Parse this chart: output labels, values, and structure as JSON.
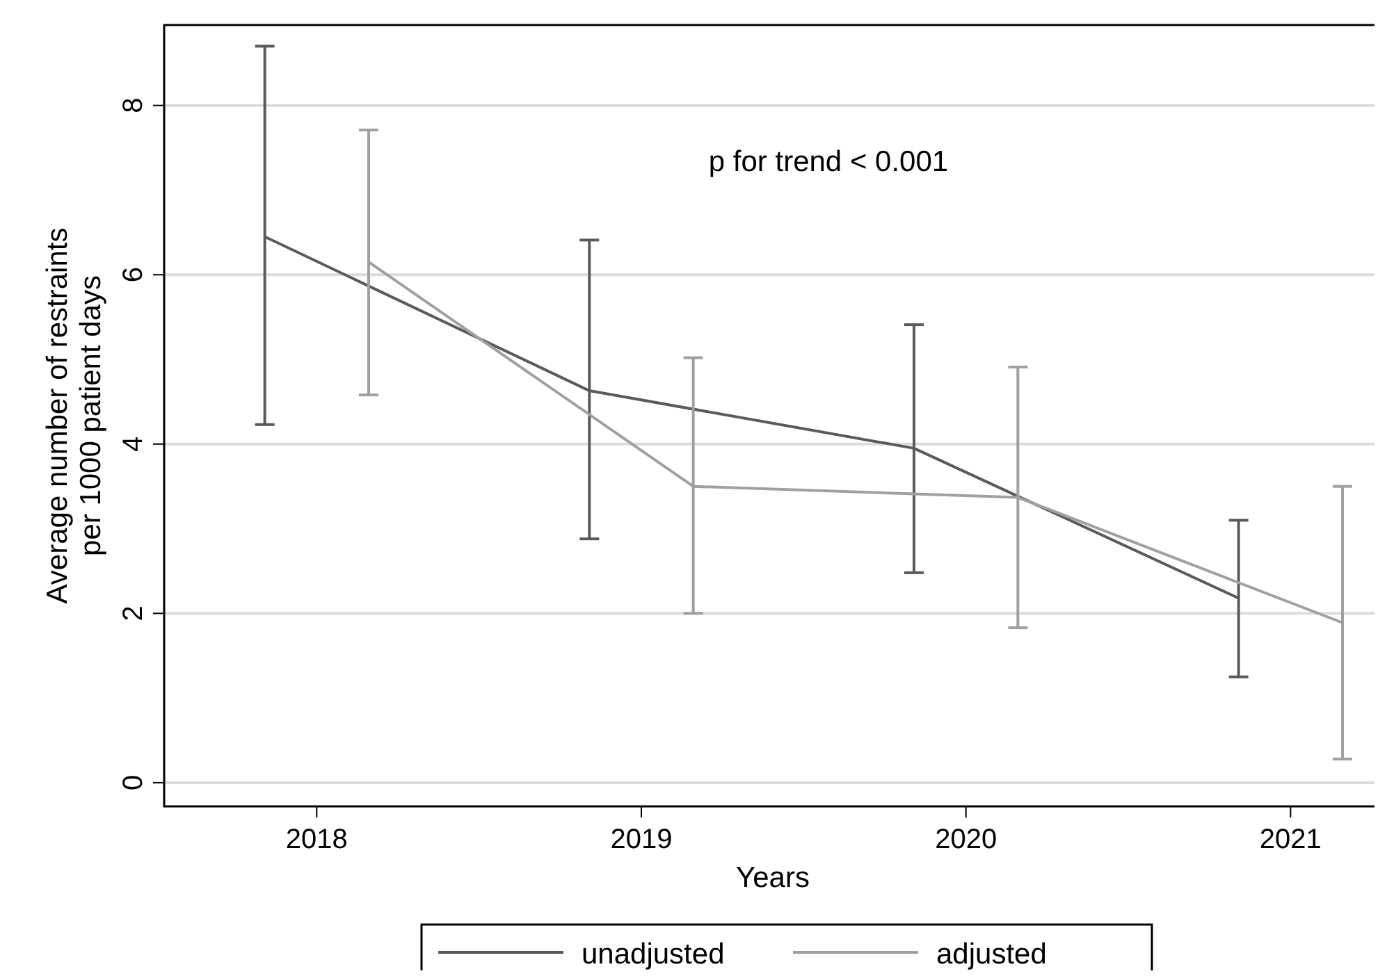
{
  "chart_data": {
    "type": "line",
    "xlabel": "Years",
    "ylabel": "Average number of restraints\nper 1000 patient days",
    "xlim": [
      2017.53,
      2021.28
    ],
    "xticks": [
      2018,
      2019,
      2020,
      2021
    ],
    "ylim": [
      -0.28,
      8.95
    ],
    "yticks": [
      0,
      2,
      4,
      6,
      8
    ],
    "grid": "y",
    "legend": "bottom",
    "marker": "none",
    "line_style": "solid",
    "annotations": [
      "p for trend < 0.001"
    ],
    "series": [
      {
        "name": "unadjusted",
        "color": "#5a5a5a",
        "x": [
          2017.84,
          2018.84,
          2019.84,
          2020.84
        ],
        "values": [
          6.45,
          4.63,
          3.95,
          2.18
        ],
        "errors": [
          [
            4.23,
            8.7
          ],
          [
            2.88,
            6.41
          ],
          [
            2.48,
            5.41
          ],
          [
            1.25,
            3.1
          ]
        ]
      },
      {
        "name": "adjusted",
        "color": "#a0a0a0",
        "x": [
          2018.16,
          2019.16,
          2020.16,
          2021.16
        ],
        "values": [
          6.15,
          3.5,
          3.37,
          1.89
        ],
        "errors": [
          [
            4.58,
            7.71
          ],
          [
            2.0,
            5.02
          ],
          [
            1.83,
            4.91
          ],
          [
            0.28,
            3.5
          ]
        ]
      }
    ]
  }
}
